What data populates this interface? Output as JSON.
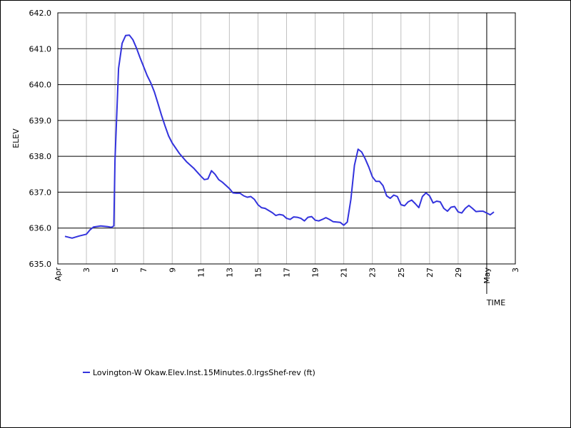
{
  "chart_data": {
    "type": "line",
    "xlabel": "TIME",
    "ylabel": "ELEV",
    "ylim": [
      635.0,
      642.0
    ],
    "xlim": [
      "2024-04-01",
      "2024-05-03"
    ],
    "y_ticks": [
      "635.0",
      "636.0",
      "637.0",
      "638.0",
      "639.0",
      "640.0",
      "641.0",
      "642.0"
    ],
    "x_ticks": [
      {
        "label": "Apr",
        "date": "2024-04-01"
      },
      {
        "label": "3",
        "date": "2024-04-03"
      },
      {
        "label": "5",
        "date": "2024-04-05"
      },
      {
        "label": "7",
        "date": "2024-04-07"
      },
      {
        "label": "9",
        "date": "2024-04-09"
      },
      {
        "label": "11",
        "date": "2024-04-11"
      },
      {
        "label": "13",
        "date": "2024-04-13"
      },
      {
        "label": "15",
        "date": "2024-04-15"
      },
      {
        "label": "17",
        "date": "2024-04-17"
      },
      {
        "label": "19",
        "date": "2024-04-19"
      },
      {
        "label": "21",
        "date": "2024-04-21"
      },
      {
        "label": "23",
        "date": "2024-04-23"
      },
      {
        "label": "25",
        "date": "2024-04-25"
      },
      {
        "label": "27",
        "date": "2024-04-27"
      },
      {
        "label": "29",
        "date": "2024-04-29"
      },
      {
        "label": "May",
        "date": "2024-05-01"
      },
      {
        "label": "3",
        "date": "2024-05-03"
      }
    ],
    "grid": true,
    "legend_position": "bottom-left",
    "series": [
      {
        "name": "Lovington-W Okaw.Elev.Inst.15Minutes.0.lrgsShef-rev (ft)",
        "color": "#3333dd",
        "points": [
          [
            "2024-04-01 12:00",
            635.77
          ],
          [
            "2024-04-02 00:00",
            635.72
          ],
          [
            "2024-04-02 12:00",
            635.78
          ],
          [
            "2024-04-03 00:00",
            635.83
          ],
          [
            "2024-04-03 06:00",
            635.95
          ],
          [
            "2024-04-03 12:00",
            636.03
          ],
          [
            "2024-04-04 00:00",
            636.06
          ],
          [
            "2024-04-04 12:00",
            636.04
          ],
          [
            "2024-04-04 18:00",
            636.02
          ],
          [
            "2024-04-04 22:00",
            636.06
          ],
          [
            "2024-04-05 00:00",
            637.9
          ],
          [
            "2024-04-05 06:00",
            640.45
          ],
          [
            "2024-04-05 12:00",
            641.15
          ],
          [
            "2024-04-05 18:00",
            641.37
          ],
          [
            "2024-04-06 00:00",
            641.38
          ],
          [
            "2024-04-06 06:00",
            641.25
          ],
          [
            "2024-04-06 12:00",
            641.02
          ],
          [
            "2024-04-06 18:00",
            640.75
          ],
          [
            "2024-04-07 00:00",
            640.5
          ],
          [
            "2024-04-07 06:00",
            640.25
          ],
          [
            "2024-04-07 12:00",
            640.05
          ],
          [
            "2024-04-07 18:00",
            639.8
          ],
          [
            "2024-04-08 00:00",
            639.48
          ],
          [
            "2024-04-08 06:00",
            639.15
          ],
          [
            "2024-04-08 12:00",
            638.85
          ],
          [
            "2024-04-08 18:00",
            638.57
          ],
          [
            "2024-04-09 00:00",
            638.37
          ],
          [
            "2024-04-09 12:00",
            638.08
          ],
          [
            "2024-04-10 00:00",
            637.85
          ],
          [
            "2024-04-10 12:00",
            637.67
          ],
          [
            "2024-04-11 00:00",
            637.45
          ],
          [
            "2024-04-11 06:00",
            637.35
          ],
          [
            "2024-04-11 12:00",
            637.37
          ],
          [
            "2024-04-11 18:00",
            637.6
          ],
          [
            "2024-04-12 00:00",
            637.5
          ],
          [
            "2024-04-12 06:00",
            637.35
          ],
          [
            "2024-04-12 12:00",
            637.28
          ],
          [
            "2024-04-13 00:00",
            637.1
          ],
          [
            "2024-04-13 06:00",
            636.98
          ],
          [
            "2024-04-13 12:00",
            636.97
          ],
          [
            "2024-04-13 18:00",
            636.97
          ],
          [
            "2024-04-14 00:00",
            636.9
          ],
          [
            "2024-04-14 06:00",
            636.86
          ],
          [
            "2024-04-14 12:00",
            636.88
          ],
          [
            "2024-04-14 18:00",
            636.8
          ],
          [
            "2024-04-15 00:00",
            636.65
          ],
          [
            "2024-04-15 06:00",
            636.57
          ],
          [
            "2024-04-15 12:00",
            636.55
          ],
          [
            "2024-04-16 00:00",
            636.43
          ],
          [
            "2024-04-16 06:00",
            636.35
          ],
          [
            "2024-04-16 12:00",
            636.38
          ],
          [
            "2024-04-16 18:00",
            636.36
          ],
          [
            "2024-04-17 00:00",
            636.27
          ],
          [
            "2024-04-17 06:00",
            636.24
          ],
          [
            "2024-04-17 12:00",
            636.31
          ],
          [
            "2024-04-17 18:00",
            636.3
          ],
          [
            "2024-04-18 00:00",
            636.27
          ],
          [
            "2024-04-18 06:00",
            636.2
          ],
          [
            "2024-04-18 12:00",
            636.3
          ],
          [
            "2024-04-18 18:00",
            636.32
          ],
          [
            "2024-04-19 00:00",
            636.22
          ],
          [
            "2024-04-19 06:00",
            636.2
          ],
          [
            "2024-04-19 12:00",
            636.24
          ],
          [
            "2024-04-19 18:00",
            636.29
          ],
          [
            "2024-04-20 00:00",
            636.24
          ],
          [
            "2024-04-20 06:00",
            636.18
          ],
          [
            "2024-04-20 12:00",
            636.17
          ],
          [
            "2024-04-20 18:00",
            636.16
          ],
          [
            "2024-04-21 00:00",
            636.08
          ],
          [
            "2024-04-21 06:00",
            636.17
          ],
          [
            "2024-04-21 12:00",
            636.8
          ],
          [
            "2024-04-21 18:00",
            637.75
          ],
          [
            "2024-04-22 00:00",
            638.2
          ],
          [
            "2024-04-22 06:00",
            638.12
          ],
          [
            "2024-04-22 12:00",
            637.93
          ],
          [
            "2024-04-22 18:00",
            637.7
          ],
          [
            "2024-04-23 00:00",
            637.43
          ],
          [
            "2024-04-23 06:00",
            637.3
          ],
          [
            "2024-04-23 12:00",
            637.3
          ],
          [
            "2024-04-23 18:00",
            637.18
          ],
          [
            "2024-04-24 00:00",
            636.9
          ],
          [
            "2024-04-24 06:00",
            636.83
          ],
          [
            "2024-04-24 12:00",
            636.92
          ],
          [
            "2024-04-24 18:00",
            636.88
          ],
          [
            "2024-04-25 00:00",
            636.65
          ],
          [
            "2024-04-25 06:00",
            636.62
          ],
          [
            "2024-04-25 12:00",
            636.73
          ],
          [
            "2024-04-25 18:00",
            636.78
          ],
          [
            "2024-04-26 00:00",
            636.68
          ],
          [
            "2024-04-26 06:00",
            636.57
          ],
          [
            "2024-04-26 12:00",
            636.88
          ],
          [
            "2024-04-26 18:00",
            636.98
          ],
          [
            "2024-04-27 00:00",
            636.9
          ],
          [
            "2024-04-27 06:00",
            636.7
          ],
          [
            "2024-04-27 12:00",
            636.75
          ],
          [
            "2024-04-27 18:00",
            636.73
          ],
          [
            "2024-04-28 00:00",
            636.55
          ],
          [
            "2024-04-28 06:00",
            636.47
          ],
          [
            "2024-04-28 12:00",
            636.58
          ],
          [
            "2024-04-28 18:00",
            636.6
          ],
          [
            "2024-04-29 00:00",
            636.45
          ],
          [
            "2024-04-29 06:00",
            636.42
          ],
          [
            "2024-04-29 12:00",
            636.55
          ],
          [
            "2024-04-29 18:00",
            636.63
          ],
          [
            "2024-04-30 00:00",
            636.55
          ],
          [
            "2024-04-30 06:00",
            636.46
          ],
          [
            "2024-04-30 12:00",
            636.47
          ],
          [
            "2024-04-30 18:00",
            636.47
          ],
          [
            "2024-05-01 00:00",
            636.42
          ],
          [
            "2024-05-01 06:00",
            636.37
          ],
          [
            "2024-05-01 12:00",
            636.45
          ]
        ]
      }
    ]
  }
}
